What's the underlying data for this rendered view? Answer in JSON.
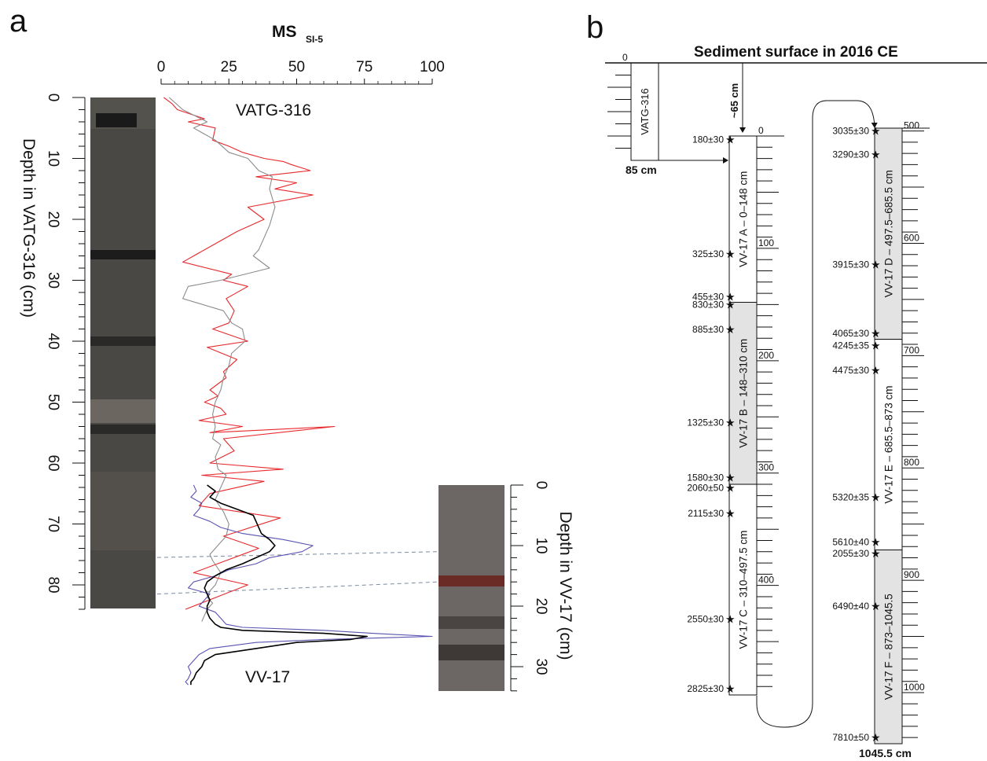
{
  "panel_a": {
    "panel_label": "a",
    "ms_axis_title": "MS",
    "ms_axis_subscript": "SI-5",
    "ms_ticks": [
      0,
      25,
      50,
      75,
      100
    ],
    "left_axis_title": "Depth in VATG-316 (cm)",
    "left_ticks": [
      0,
      10,
      20,
      30,
      40,
      50,
      60,
      70,
      80
    ],
    "right_axis_title": "Depth in VV-17 (cm)",
    "right_ticks": [
      0,
      10,
      20,
      30
    ],
    "vatg_label": "VATG-316",
    "vv_label": "VV-17"
  },
  "panel_b": {
    "panel_label": "b",
    "title": "Sediment surface in 2016 CE",
    "offset_label": "~65 cm",
    "vatg_core_label": "VATG-316",
    "vatg_top_label": "0",
    "vatg_bottom_label": "85 cm",
    "bottom_label": "1045.5 cm",
    "scale_labels_left": [
      "0",
      "100",
      "200",
      "300",
      "400"
    ],
    "scale_labels_right": [
      "500",
      "600",
      "700",
      "800",
      "900",
      "1000"
    ],
    "sections": [
      {
        "name": "VV-17 A  –  0–148 cm",
        "top": 0,
        "bottom": 148,
        "shaded": false
      },
      {
        "name": "VV-17 B  –  148–310 cm",
        "top": 148,
        "bottom": 310,
        "shaded": true
      },
      {
        "name": "VV-17 C  –  310–497.5 cm",
        "top": 310,
        "bottom": 497.5,
        "shaded": false
      },
      {
        "name": "VV-17 D  –  497.5–685.5 cm",
        "top": 497.5,
        "bottom": 685.5,
        "shaded": true
      },
      {
        "name": "VV-17 E  –  685.5–873 cm",
        "top": 685.5,
        "bottom": 873,
        "shaded": false
      },
      {
        "name": "VV-17 F  –  873–1045.5",
        "top": 873,
        "bottom": 1045.5,
        "shaded": true
      }
    ],
    "dates": [
      {
        "label": "180±30",
        "depth": 3
      },
      {
        "label": "325±30",
        "depth": 105
      },
      {
        "label": "455±30",
        "depth": 143
      },
      {
        "label": "830±30",
        "depth": 150
      },
      {
        "label": "885±30",
        "depth": 172
      },
      {
        "label": "1325±30",
        "depth": 255
      },
      {
        "label": "1580±30",
        "depth": 304
      },
      {
        "label": "2060±50",
        "depth": 313
      },
      {
        "label": "2115±30",
        "depth": 336
      },
      {
        "label": "2550±30",
        "depth": 430
      },
      {
        "label": "2825±30",
        "depth": 492
      },
      {
        "label": "3035±30",
        "depth": 500
      },
      {
        "label": "3290±30",
        "depth": 521
      },
      {
        "label": "3915±30",
        "depth": 619
      },
      {
        "label": "4065±30",
        "depth": 680
      },
      {
        "label": "4245±35",
        "depth": 691
      },
      {
        "label": "4475±30",
        "depth": 713
      },
      {
        "label": "5320±35",
        "depth": 826
      },
      {
        "label": "5610±40",
        "depth": 866
      },
      {
        "label": "2055±30",
        "depth": 876
      },
      {
        "label": "6490±40",
        "depth": 923
      },
      {
        "label": "7810±50",
        "depth": 1040
      }
    ]
  },
  "chart_data": {
    "type": "line",
    "title": "MS SI-5",
    "xlabel": "MS SI-5",
    "ylabel": "Depth in VATG-316 (cm)",
    "y2label": "Depth in VV-17 (cm)",
    "xlim": [
      0,
      100
    ],
    "ylim": [
      0,
      84
    ],
    "y2lim": [
      0,
      33
    ],
    "series": [
      {
        "color": "#e8282c",
        "axis": "VATG-316",
        "x": [
          1,
          4,
          6,
          16,
          10,
          20,
          19,
          25,
          30,
          38,
          45,
          48,
          55,
          35,
          50,
          42,
          56,
          32,
          38,
          28,
          20,
          8,
          26,
          23,
          32,
          24,
          27,
          25,
          19,
          32,
          17,
          28,
          23,
          24,
          18,
          21,
          16,
          22,
          24,
          14,
          30,
          18,
          64,
          23,
          27,
          18,
          45,
          15,
          38,
          18,
          14,
          44,
          23,
          36,
          30,
          24,
          12,
          32,
          9
        ],
        "y": [
          0,
          1,
          2,
          3.5,
          4,
          5,
          7,
          8,
          9,
          10,
          10.5,
          11,
          12,
          13,
          14,
          15,
          16,
          18,
          20,
          22,
          24,
          27,
          29,
          30,
          31,
          33,
          35,
          37,
          38,
          40,
          41,
          43,
          45,
          46,
          48,
          49,
          50,
          51,
          52,
          53,
          54,
          55,
          54,
          56,
          58,
          60,
          61,
          62,
          63,
          65,
          67,
          69,
          72,
          74,
          75,
          76,
          78,
          80,
          84
        ]
      },
      {
        "color": "#8c8c8c",
        "axis": "VATG-316",
        "x": [
          3,
          8,
          17,
          12,
          20,
          25,
          32,
          36,
          41,
          40,
          42,
          40,
          38,
          36,
          34,
          40,
          22,
          10,
          8,
          23,
          26,
          30,
          31,
          26,
          25,
          23,
          22,
          20,
          19,
          20,
          19,
          22,
          20,
          21,
          24,
          23,
          22,
          20,
          23,
          25,
          24,
          22,
          18,
          19,
          22,
          21,
          20,
          18,
          17,
          19,
          17,
          16,
          15
        ],
        "y": [
          0,
          2,
          4,
          5,
          7,
          9,
          10,
          12,
          13,
          15,
          18,
          21,
          23,
          25,
          26,
          28,
          30,
          31,
          33,
          35,
          37,
          38,
          40,
          42,
          44,
          46,
          48,
          50,
          52,
          54,
          56,
          57,
          59,
          61,
          62,
          63,
          64,
          66,
          68,
          70,
          72,
          73,
          75,
          76,
          78,
          79,
          80,
          81,
          82,
          83,
          84,
          85,
          86
        ]
      },
      {
        "color": "#5a53b0",
        "axis": "VV-17",
        "x": [
          12,
          13,
          11,
          15,
          14,
          12,
          18,
          22,
          30,
          45,
          56,
          52,
          40,
          35,
          25,
          20,
          12,
          10,
          18,
          16,
          14,
          20,
          22,
          24,
          30,
          60,
          78,
          100,
          60,
          35,
          18,
          14,
          12,
          10,
          11,
          10,
          9,
          10
        ],
        "y": [
          0,
          1,
          2,
          3,
          4,
          5,
          6,
          7,
          8,
          9,
          10,
          11,
          12,
          13,
          14,
          15,
          16,
          17,
          18,
          19,
          20,
          21,
          22,
          23,
          23.5,
          24,
          24.5,
          25,
          25.5,
          26,
          27,
          28,
          29,
          30,
          31,
          32,
          32.5,
          33
        ]
      },
      {
        "color": "#000000",
        "axis": "VV-17",
        "x": [
          17,
          20,
          18,
          22,
          28,
          34,
          35,
          36,
          37,
          40,
          42,
          40,
          35,
          30,
          24,
          20,
          17,
          16,
          17,
          18,
          17,
          17,
          18,
          20,
          22,
          30,
          60,
          76,
          70,
          50,
          35,
          20,
          16,
          15,
          13,
          12,
          11,
          11
        ],
        "y": [
          0,
          1,
          2,
          3,
          4,
          5,
          6,
          7,
          8,
          9,
          10,
          11,
          12,
          13,
          14,
          15,
          16,
          17,
          18,
          19,
          20,
          21,
          22,
          23,
          23.5,
          24,
          24.5,
          25,
          25.5,
          26,
          27,
          28,
          29,
          30,
          31,
          32,
          32.5,
          33
        ]
      }
    ],
    "correlation_lines": [
      {
        "VATG-316": 75.5,
        "VV-17": 11
      },
      {
        "VATG-316": 81.5,
        "VV-17": 16
      }
    ]
  }
}
